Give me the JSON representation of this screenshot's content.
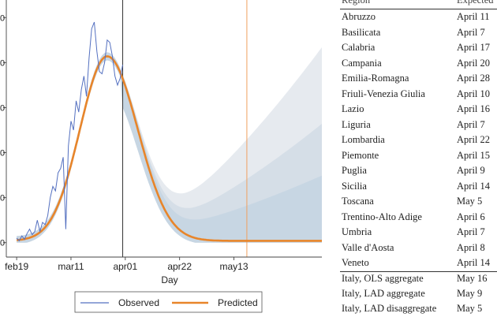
{
  "chart_data": {
    "type": "line",
    "xlabel": "Day",
    "x_ticks": [
      "feb19",
      "mar11",
      "apr01",
      "apr22",
      "may13"
    ],
    "y_ticks": [
      "0",
      "0",
      "0",
      "0",
      "0",
      "0"
    ],
    "x_range_days": [
      -4,
      118
    ],
    "y_range": [
      -50,
      1050
    ],
    "vertical_lines": [
      {
        "day": 41,
        "color": "#333333"
      },
      {
        "day": 89,
        "color": "#f0a060"
      }
    ],
    "series": [
      {
        "name": "Observed",
        "color": "#5470c0",
        "x": [
          0,
          1,
          2,
          3,
          4,
          5,
          6,
          7,
          8,
          9,
          10,
          11,
          12,
          13,
          14,
          15,
          16,
          17,
          18,
          19,
          20,
          21,
          22,
          23,
          24,
          25,
          26,
          27,
          28,
          29,
          30,
          31,
          32,
          33,
          34,
          35,
          36,
          37,
          38,
          39,
          40,
          41
        ],
        "y": [
          20,
          8,
          30,
          15,
          40,
          60,
          35,
          50,
          100,
          50,
          90,
          80,
          120,
          200,
          250,
          230,
          310,
          330,
          380,
          60,
          430,
          540,
          500,
          630,
          580,
          680,
          740,
          650,
          820,
          950,
          980,
          850,
          760,
          750,
          800,
          900,
          890,
          830,
          740,
          700,
          730,
          790
        ]
      },
      {
        "name": "Predicted",
        "color": "#e8852a",
        "peak_day": 35,
        "peak_value": 820,
        "rise_sd": 10.5,
        "fall_sd": 11.8,
        "x_end": 118
      }
    ],
    "bands": [
      {
        "name": "outer",
        "color": "#dde3ea",
        "upper_at_end": 860,
        "lower_at_end": 0
      },
      {
        "name": "middle",
        "color": "#cfdae4",
        "upper_at_end": 520,
        "lower_at_end": 0
      },
      {
        "name": "inner",
        "color": "#c2d3e1",
        "upper_at_end": 290,
        "lower_at_end": 0
      }
    ]
  },
  "table": {
    "headers": [
      "Region",
      "Expected"
    ],
    "rows": [
      [
        "Abruzzo",
        "April 11"
      ],
      [
        "Basilicata",
        "April 7"
      ],
      [
        "Calabria",
        "April 17"
      ],
      [
        "Campania",
        "April 20"
      ],
      [
        "Emilia-Romagna",
        "April 28"
      ],
      [
        "Friuli-Venezia Giulia",
        "April 10"
      ],
      [
        "Lazio",
        "April 16"
      ],
      [
        "Liguria",
        "April 7"
      ],
      [
        "Lombardia",
        "April 22"
      ],
      [
        "Piemonte",
        "April 15"
      ],
      [
        "Puglia",
        "April 9"
      ],
      [
        "Sicilia",
        "April 14"
      ],
      [
        "Toscana",
        "May 5"
      ],
      [
        "Trentino-Alto Adige",
        "April 6"
      ],
      [
        "Umbria",
        "April 7"
      ],
      [
        "Valle d'Aosta",
        "April 8"
      ],
      [
        "Veneto",
        "April 14"
      ]
    ],
    "aggregate_rows": [
      [
        "Italy, OLS aggregate",
        "May 16"
      ],
      [
        "Italy, LAD aggregate",
        "May 9"
      ],
      [
        "Italy, LAD disaggregate",
        "May 5"
      ]
    ]
  }
}
